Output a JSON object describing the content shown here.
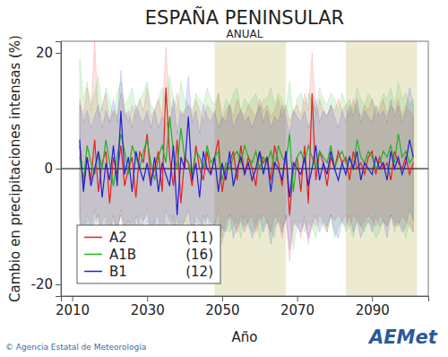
{
  "chart_data": {
    "type": "line",
    "title": "ESPAÑA PENINSULAR",
    "subtitle": "ANUAL",
    "y_label": "Cambio en precipitaciones intensas (%)",
    "x_label": "Año",
    "footer": "© Agencia Estatal de Meteorología",
    "logo": "AEMet",
    "xlim": [
      2007,
      2105
    ],
    "ylim": [
      -22,
      22
    ],
    "xticks": [
      2010,
      2030,
      2050,
      2070,
      2090
    ],
    "yticks": [
      -20,
      0,
      20
    ],
    "hline": 0,
    "periods": [
      [
        2048,
        2067
      ],
      [
        2083,
        2102
      ]
    ],
    "legend": "lower left",
    "x": [
      2012,
      2013,
      2014,
      2015,
      2016,
      2017,
      2018,
      2019,
      2020,
      2021,
      2022,
      2023,
      2024,
      2025,
      2026,
      2027,
      2028,
      2029,
      2030,
      2031,
      2032,
      2033,
      2034,
      2035,
      2036,
      2037,
      2038,
      2039,
      2040,
      2041,
      2042,
      2043,
      2044,
      2045,
      2046,
      2047,
      2048,
      2049,
      2050,
      2051,
      2052,
      2053,
      2054,
      2055,
      2056,
      2057,
      2058,
      2059,
      2060,
      2061,
      2062,
      2063,
      2064,
      2065,
      2066,
      2067,
      2068,
      2069,
      2070,
      2071,
      2072,
      2073,
      2074,
      2075,
      2076,
      2077,
      2078,
      2079,
      2080,
      2081,
      2082,
      2083,
      2084,
      2085,
      2086,
      2087,
      2088,
      2089,
      2090,
      2091,
      2092,
      2093,
      2094,
      2095,
      2096,
      2097,
      2098,
      2099,
      2100,
      2101
    ],
    "series": [
      {
        "name": "A2",
        "count_label": "(11)",
        "color": "#e8201c",
        "values": [
          4,
          -3,
          2,
          -2,
          5,
          -4,
          1,
          3,
          -6,
          2,
          -1,
          4,
          -3,
          0,
          2,
          -5,
          3,
          1,
          6,
          -2,
          0,
          3,
          -4,
          14,
          2,
          -3,
          5,
          -6,
          2,
          1,
          -3,
          4,
          0,
          -2,
          3,
          -1,
          2,
          5,
          -4,
          0,
          1,
          3,
          -2,
          4,
          -1,
          2,
          0,
          -3,
          3,
          1,
          2,
          -2,
          4,
          1,
          -3,
          3,
          -8,
          0,
          2,
          -4,
          4,
          -6,
          13,
          -2,
          3,
          1,
          -3,
          2,
          0,
          3,
          1,
          2,
          -2,
          3,
          0,
          1,
          -1,
          2,
          3,
          -1,
          2,
          0,
          1,
          -2,
          3,
          1,
          0,
          2,
          -1,
          1
        ],
        "lower": [
          -9,
          -12,
          -8,
          -10,
          -7,
          -11,
          -9,
          -8,
          -13,
          -9,
          -10,
          -8,
          -12,
          -9,
          -10,
          -13,
          -8,
          -9,
          -7,
          -11,
          -9,
          -8,
          -12,
          -7,
          -9,
          -11,
          -8,
          -14,
          -9,
          -10,
          -11,
          -8,
          -9,
          -10,
          -8,
          -9,
          -10,
          -7,
          -12,
          -9,
          -8,
          -9,
          -11,
          -8,
          -10,
          -9,
          -8,
          -11,
          -9,
          -8,
          -9,
          -11,
          -8,
          -9,
          -12,
          -8,
          -16,
          -10,
          -9,
          -12,
          -8,
          -13,
          -9,
          -10,
          -8,
          -9,
          -11,
          -8,
          -9,
          -8,
          -9,
          -8,
          -10,
          -8,
          -9,
          -10,
          -9,
          -8,
          -9,
          -10,
          -8,
          -9,
          -10,
          -8,
          -9,
          -10,
          -8,
          -9,
          -10,
          -11
        ],
        "upper": [
          12,
          9,
          14,
          10,
          22,
          9,
          11,
          13,
          8,
          10,
          9,
          13,
          10,
          8,
          11,
          9,
          12,
          10,
          14,
          9,
          10,
          12,
          9,
          21,
          11,
          10,
          13,
          9,
          10,
          11,
          9,
          12,
          10,
          8,
          11,
          10,
          9,
          13,
          8,
          10,
          11,
          9,
          12,
          10,
          9,
          11,
          10,
          9,
          12,
          10,
          11,
          9,
          10,
          12,
          9,
          11,
          8,
          10,
          11,
          9,
          13,
          10,
          20,
          9,
          12,
          10,
          9,
          11,
          10,
          12,
          10,
          11,
          9,
          12,
          10,
          9,
          11,
          10,
          12,
          9,
          10,
          12,
          9,
          11,
          10,
          12,
          9,
          11,
          10,
          9
        ]
      },
      {
        "name": "A1B",
        "count_label": "(16)",
        "color": "#1fb21f",
        "values": [
          2,
          -2,
          4,
          1,
          -1,
          3,
          0,
          5,
          1,
          -3,
          2,
          6,
          3,
          -1,
          4,
          2,
          0,
          3,
          5,
          1,
          -2,
          2,
          4,
          1,
          9,
          3,
          0,
          7,
          2,
          1,
          -1,
          3,
          2,
          0,
          4,
          1,
          2,
          3,
          -2,
          1,
          0,
          2,
          3,
          1,
          4,
          2,
          1,
          3,
          0,
          2,
          1,
          3,
          0,
          4,
          2,
          1,
          6,
          -4,
          2,
          3,
          1,
          4,
          2,
          0,
          3,
          2,
          1,
          4,
          0,
          2,
          3,
          1,
          2,
          0,
          5,
          2,
          1,
          3,
          2,
          0,
          1,
          3,
          2,
          4,
          1,
          6,
          2,
          3,
          1,
          2
        ],
        "lower": [
          -11,
          -14,
          -9,
          -12,
          -10,
          -8,
          -13,
          -9,
          -11,
          -15,
          -10,
          -8,
          -12,
          -11,
          -9,
          -10,
          -13,
          -9,
          -8,
          -11,
          -14,
          -10,
          -9,
          -12,
          -8,
          -10,
          -11,
          -9,
          -10,
          -12,
          -11,
          -9,
          -10,
          -12,
          -8,
          -11,
          -10,
          -9,
          -13,
          -10,
          -11,
          -10,
          -9,
          -12,
          -8,
          -10,
          -11,
          -9,
          -12,
          -10,
          -9,
          -11,
          -12,
          -8,
          -10,
          -9,
          -8,
          -14,
          -10,
          -9,
          -11,
          -9,
          -10,
          -12,
          -9,
          -10,
          -11,
          -8,
          -12,
          -10,
          -9,
          -11,
          -10,
          -12,
          -8,
          -10,
          -11,
          -9,
          -10,
          -12,
          -11,
          -9,
          -10,
          -8,
          -11,
          -9,
          -10,
          -12,
          -9,
          -11
        ],
        "upper": [
          19,
          12,
          15,
          11,
          13,
          16,
          10,
          14,
          12,
          9,
          13,
          15,
          11,
          12,
          14,
          10,
          12,
          13,
          15,
          11,
          10,
          12,
          14,
          11,
          16,
          12,
          10,
          15,
          12,
          11,
          10,
          13,
          12,
          11,
          14,
          12,
          11,
          13,
          9,
          12,
          11,
          13,
          14,
          10,
          12,
          11,
          12,
          13,
          10,
          12,
          12,
          14,
          11,
          13,
          12,
          10,
          15,
          9,
          12,
          13,
          11,
          13,
          12,
          10,
          14,
          12,
          11,
          13,
          12,
          10,
          13,
          11,
          12,
          10,
          14,
          12,
          11,
          13,
          12,
          10,
          11,
          13,
          12,
          14,
          11,
          15,
          12,
          13,
          11,
          12
        ]
      },
      {
        "name": "B1",
        "count_label": "(12)",
        "color": "#2020d8",
        "values": [
          5,
          -4,
          2,
          -3,
          0,
          3,
          -5,
          1,
          -2,
          4,
          -3,
          10,
          -1,
          2,
          -4,
          3,
          0,
          -2,
          1,
          -3,
          2,
          -4,
          1,
          -1,
          -3,
          4,
          -8,
          2,
          0,
          9,
          -2,
          1,
          -5,
          3,
          0,
          -1,
          2,
          -4,
          1,
          -2,
          3,
          -3,
          0,
          2,
          -1,
          1,
          -2,
          0,
          3,
          -1,
          2,
          -4,
          1,
          0,
          -2,
          3,
          -5,
          1,
          0,
          -1,
          2,
          -3,
          0,
          4,
          -2,
          1,
          -1,
          3,
          0,
          -2,
          1,
          -1,
          2,
          0,
          3,
          -2,
          1,
          0,
          -1,
          2,
          0,
          1,
          -2,
          3,
          0,
          2,
          -1,
          1,
          5,
          2
        ],
        "lower": [
          -8,
          -13,
          -10,
          -12,
          -9,
          -8,
          -14,
          -10,
          -11,
          -8,
          -12,
          -7,
          -10,
          -9,
          -13,
          -8,
          -10,
          -11,
          -9,
          -12,
          -9,
          -13,
          -10,
          -11,
          -12,
          -8,
          -17,
          -10,
          -9,
          -7,
          -11,
          -9,
          -13,
          -8,
          -10,
          -11,
          -9,
          -12,
          -10,
          -11,
          -8,
          -12,
          -10,
          -9,
          -11,
          -9,
          -12,
          -10,
          -8,
          -11,
          -9,
          -13,
          -10,
          -9,
          -11,
          -8,
          -14,
          -9,
          -10,
          -11,
          -9,
          -12,
          -10,
          -8,
          -11,
          -9,
          -10,
          -8,
          -11,
          -12,
          -9,
          -10,
          -8,
          -11,
          -9,
          -12,
          -10,
          -9,
          -11,
          -8,
          -10,
          -9,
          -12,
          -8,
          -10,
          -9,
          -11,
          -10,
          -7,
          -9
        ],
        "upper": [
          11,
          8,
          10,
          7,
          9,
          11,
          7,
          10,
          8,
          12,
          8,
          17,
          9,
          10,
          7,
          11,
          9,
          8,
          10,
          7,
          10,
          7,
          9,
          8,
          7,
          12,
          6,
          10,
          9,
          16,
          8,
          10,
          6,
          11,
          9,
          8,
          10,
          7,
          9,
          8,
          11,
          7,
          9,
          10,
          8,
          9,
          7,
          9,
          11,
          8,
          10,
          7,
          9,
          8,
          11,
          9,
          6,
          10,
          9,
          8,
          10,
          7,
          9,
          12,
          8,
          10,
          9,
          11,
          9,
          7,
          10,
          8,
          11,
          9,
          12,
          8,
          10,
          9,
          8,
          11,
          9,
          10,
          8,
          12,
          9,
          11,
          8,
          10,
          14,
          11
        ]
      }
    ]
  }
}
